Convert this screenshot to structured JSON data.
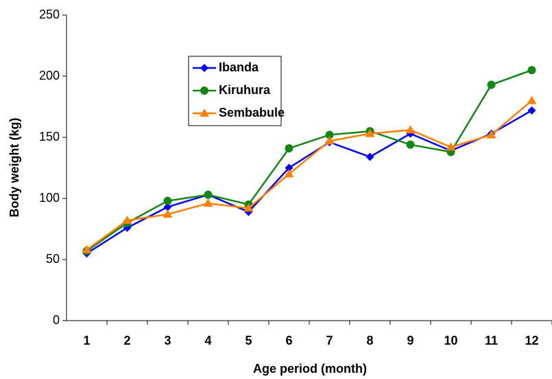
{
  "chart_data": {
    "type": "line",
    "x_label": "Age period (month)",
    "y_label": "Body weight (kg)",
    "categories": [
      "1",
      "2",
      "3",
      "4",
      "5",
      "6",
      "7",
      "8",
      "9",
      "10",
      "11",
      "12"
    ],
    "series": [
      {
        "name": "Ibanda",
        "color": "#0000ff",
        "marker": "diamond",
        "values": [
          55,
          76,
          93,
          103,
          89,
          125,
          146,
          134,
          153,
          139,
          153,
          172
        ]
      },
      {
        "name": "Kiruhura",
        "color": "#138613",
        "marker": "circle",
        "values": [
          57,
          80,
          98,
          103,
          95,
          141,
          152,
          155,
          144,
          138,
          193,
          205
        ]
      },
      {
        "name": "Sembabule",
        "color": "#ff8000",
        "marker": "triangle",
        "values": [
          58,
          82,
          87,
          96,
          92,
          120,
          147,
          153,
          156,
          142,
          152,
          180
        ]
      }
    ],
    "ylim": [
      0,
      250
    ],
    "yticks": [
      0,
      50,
      100,
      150,
      200,
      250
    ],
    "grid": false
  }
}
